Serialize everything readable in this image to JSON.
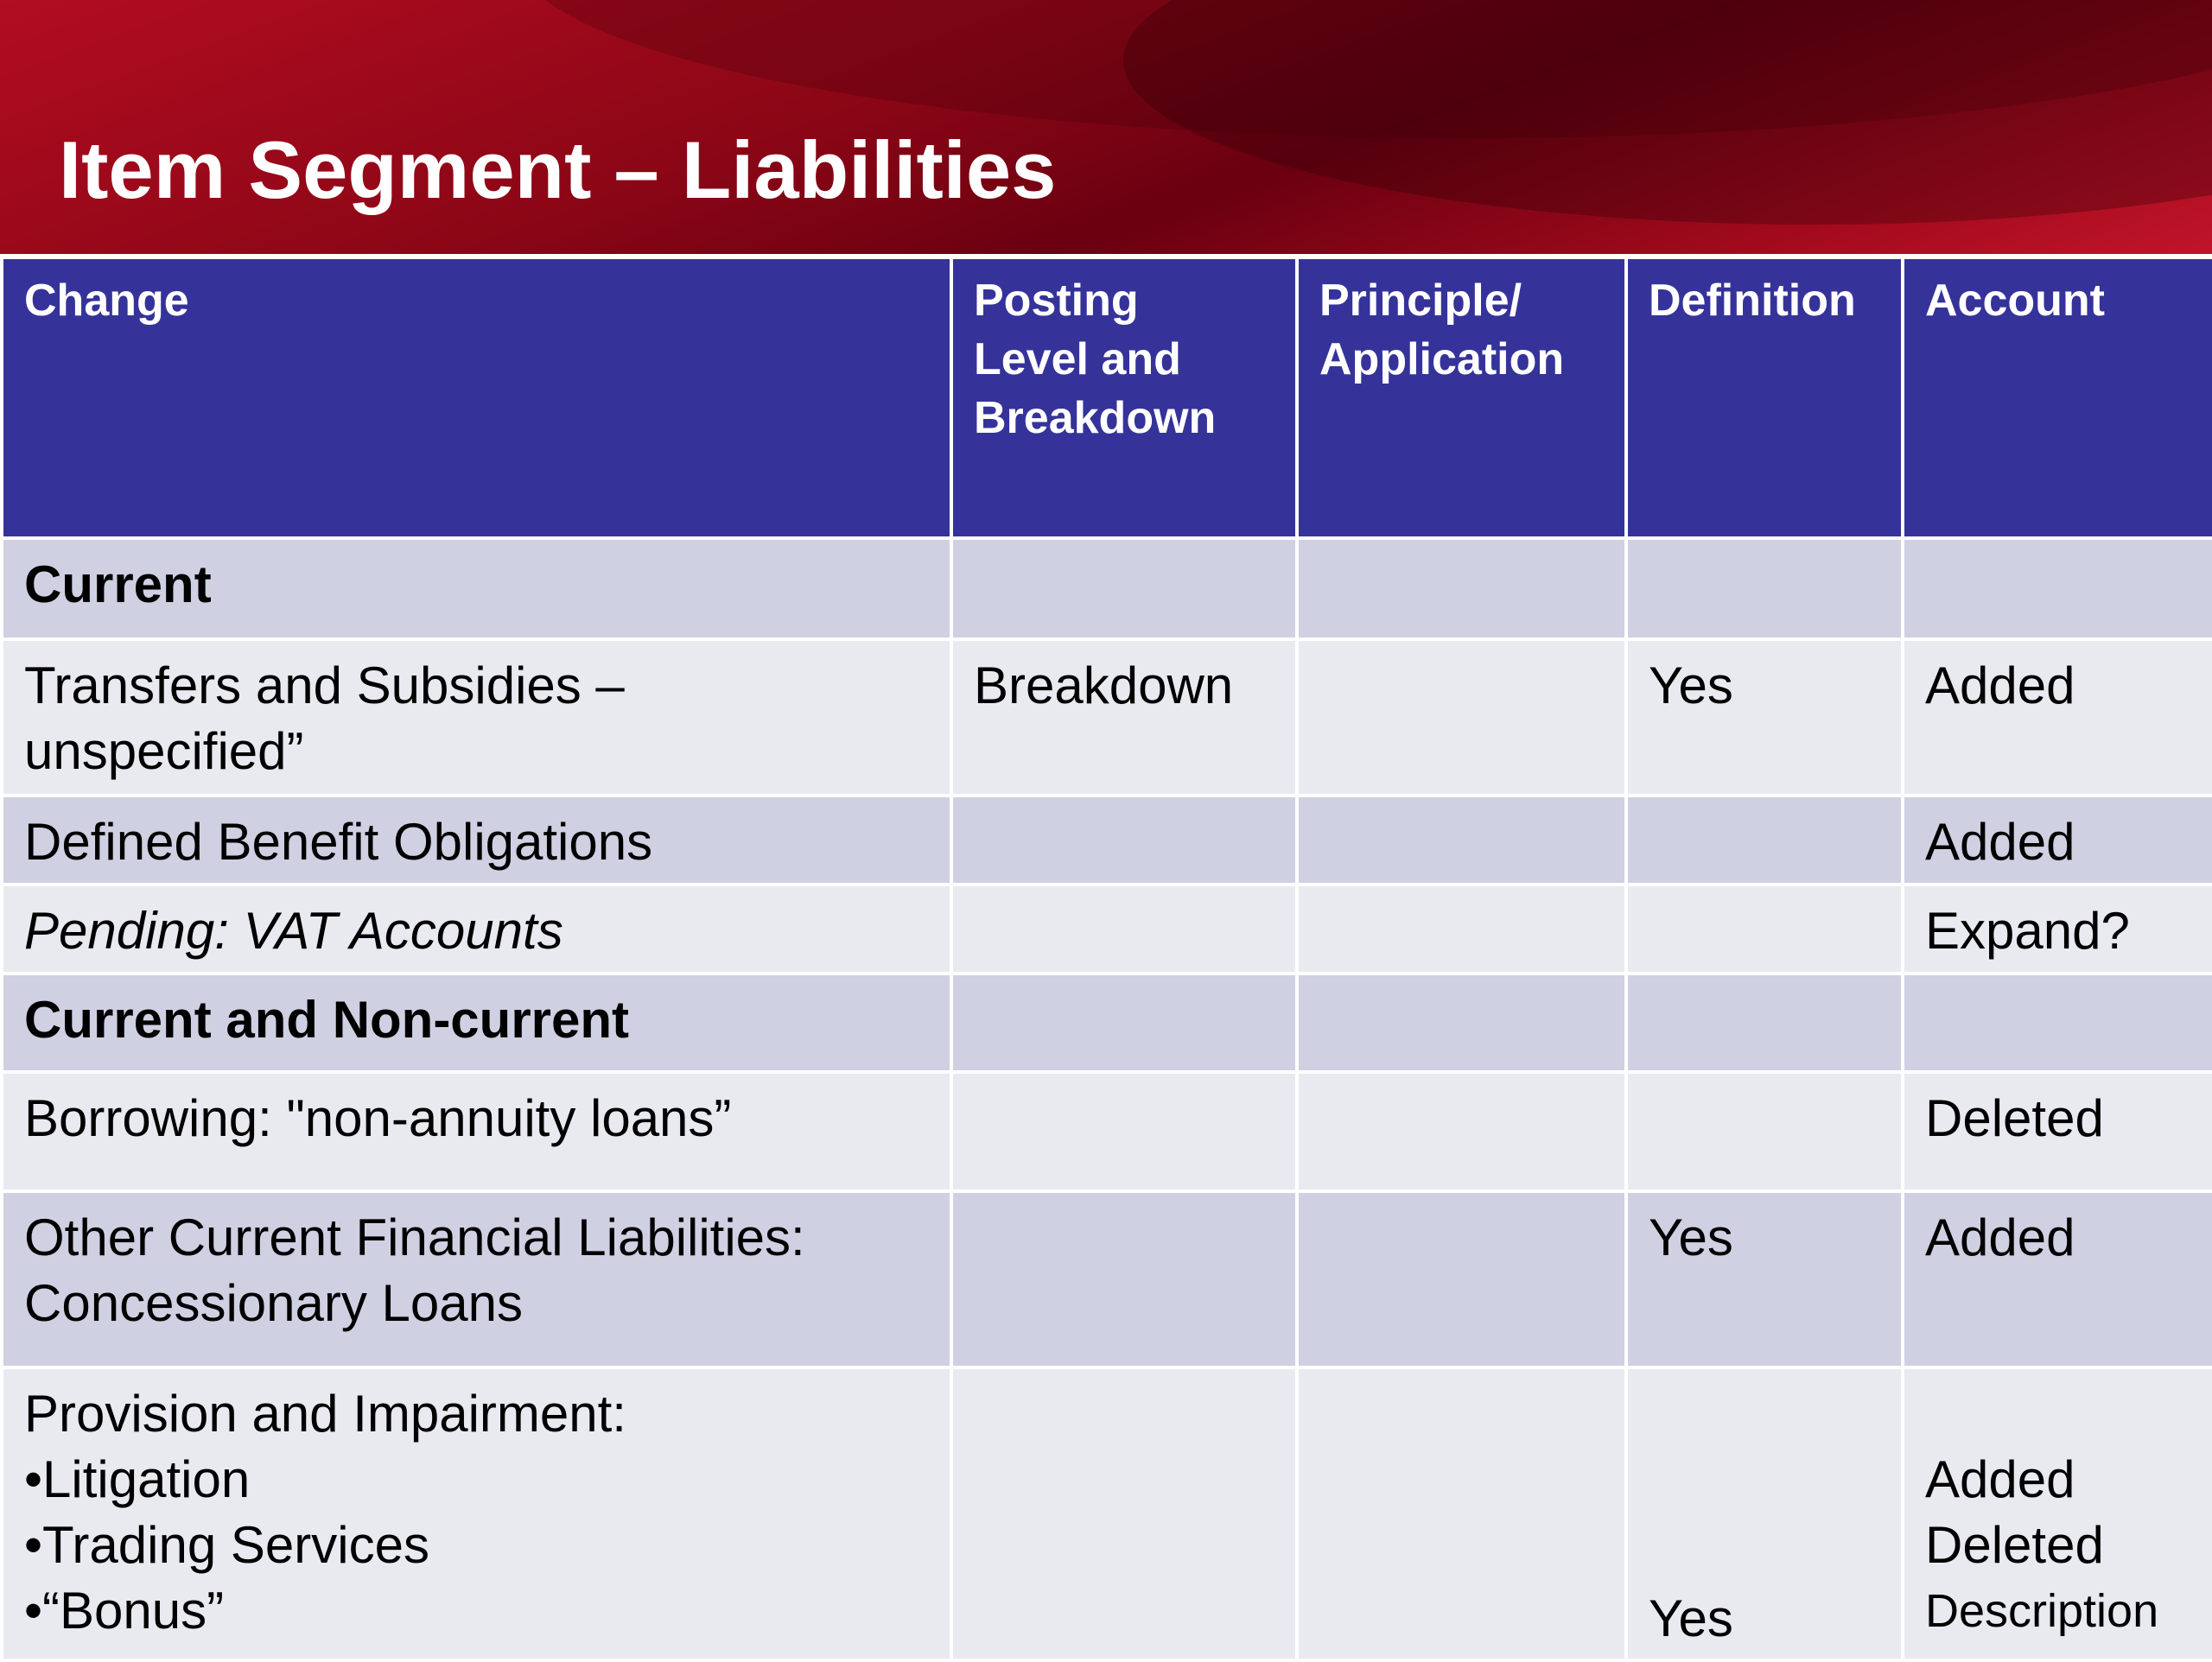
{
  "header": {
    "title": "Item Segment – Liabilities"
  },
  "table": {
    "columns": [
      "Change",
      [
        "Posting",
        "Level and",
        "Breakdown"
      ],
      [
        "Principle/",
        "Application"
      ],
      "Definition",
      "Account"
    ],
    "rows": [
      [
        "Current",
        "",
        "",
        "",
        ""
      ],
      [
        [
          "Transfers and Subsidies –",
          "unspecified”"
        ],
        "Breakdown",
        "",
        "Yes",
        "Added"
      ],
      [
        "Defined Benefit Obligations",
        "",
        "",
        "",
        "Added"
      ],
      [
        "Pending:  VAT Accounts",
        "",
        "",
        "",
        "Expand?"
      ],
      [
        "Current and Non-current",
        "",
        "",
        "",
        ""
      ],
      [
        "Borrowing:  \"non-annuity loans”",
        "",
        "",
        "",
        "Deleted"
      ],
      [
        [
          "Other Current Financial Liabilities:",
          "Concessionary Loans"
        ],
        "",
        "",
        "Yes",
        "Added"
      ],
      [
        [
          "Provision and Impairment:",
          "•Litigation",
          "•Trading Services",
          "•“Bonus”"
        ],
        "",
        "",
        "Yes",
        [
          "Added",
          "Deleted",
          "Description"
        ]
      ]
    ]
  }
}
